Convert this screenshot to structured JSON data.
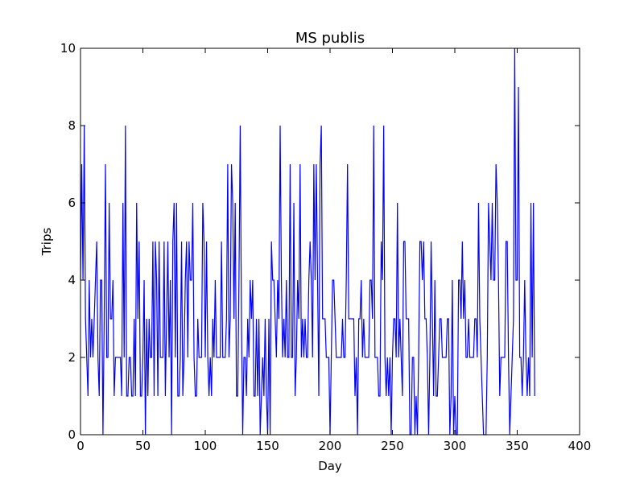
{
  "chart_data": {
    "type": "line",
    "title": "MS publis",
    "xlabel": "Day",
    "ylabel": "Trips",
    "xlim": [
      0,
      400
    ],
    "ylim": [
      0,
      10
    ],
    "xticks": [
      0,
      50,
      100,
      150,
      200,
      250,
      300,
      350,
      400
    ],
    "yticks": [
      0,
      2,
      4,
      6,
      8,
      10
    ],
    "grid": false,
    "legend": "none",
    "series": [
      {
        "color": "#0000ff",
        "x": [
          0,
          1,
          2,
          3,
          4,
          5,
          6,
          7,
          8,
          9,
          10,
          11,
          12,
          13,
          14,
          15,
          16,
          17,
          18,
          19,
          20,
          21,
          22,
          23,
          24,
          25,
          26,
          27,
          28,
          29,
          30,
          31,
          32,
          33,
          34,
          35,
          36,
          37,
          38,
          39,
          40,
          41,
          42,
          43,
          44,
          45,
          46,
          47,
          48,
          49,
          50,
          51,
          52,
          53,
          54,
          55,
          56,
          57,
          58,
          59,
          60,
          61,
          62,
          63,
          64,
          65,
          66,
          67,
          68,
          69,
          70,
          71,
          72,
          73,
          74,
          75,
          76,
          77,
          78,
          79,
          80,
          81,
          82,
          83,
          84,
          85,
          86,
          87,
          88,
          89,
          90,
          91,
          92,
          93,
          94,
          95,
          96,
          97,
          98,
          99,
          100,
          101,
          102,
          103,
          104,
          105,
          106,
          107,
          108,
          109,
          110,
          111,
          112,
          113,
          114,
          115,
          116,
          117,
          118,
          119,
          120,
          121,
          122,
          123,
          124,
          125,
          126,
          127,
          128,
          129,
          130,
          131,
          132,
          133,
          134,
          135,
          136,
          137,
          138,
          139,
          140,
          141,
          142,
          143,
          144,
          145,
          146,
          147,
          148,
          149,
          150,
          151,
          152,
          153,
          154,
          155,
          156,
          157,
          158,
          159,
          160,
          161,
          162,
          163,
          164,
          165,
          166,
          167,
          168,
          169,
          170,
          171,
          172,
          173,
          174,
          175,
          176,
          177,
          178,
          179,
          180,
          181,
          182,
          183,
          184,
          185,
          186,
          187,
          188,
          189,
          190,
          191,
          192,
          193,
          194,
          195,
          196,
          197,
          198,
          199,
          200,
          201,
          202,
          203,
          204,
          205,
          206,
          207,
          208,
          209,
          210,
          211,
          212,
          213,
          214,
          215,
          216,
          217,
          218,
          219,
          220,
          221,
          222,
          223,
          224,
          225,
          226,
          227,
          228,
          229,
          230,
          231,
          232,
          233,
          234,
          235,
          236,
          237,
          238,
          239,
          240,
          241,
          242,
          243,
          244,
          245,
          246,
          247,
          248,
          249,
          250,
          251,
          252,
          253,
          254,
          255,
          256,
          257,
          258,
          259,
          260,
          261,
          262,
          263,
          264,
          265,
          266,
          267,
          268,
          269,
          270,
          271,
          272,
          273,
          274,
          275,
          276,
          277,
          278,
          279,
          280,
          281,
          282,
          283,
          284,
          285,
          286,
          287,
          288,
          289,
          290,
          291,
          292,
          293,
          294,
          295,
          296,
          297,
          298,
          299,
          300,
          301,
          302,
          303,
          304,
          305,
          306,
          307,
          308,
          309,
          310,
          311,
          312,
          313,
          314,
          315,
          316,
          317,
          318,
          319,
          320,
          321,
          322,
          323,
          324,
          325,
          326,
          327,
          328,
          329,
          330,
          331,
          332,
          333,
          334,
          335,
          336,
          337,
          338,
          339,
          340,
          341,
          342,
          343,
          344,
          345,
          346,
          347,
          348,
          349,
          350,
          351,
          352,
          353,
          354,
          355,
          356,
          357,
          358,
          359,
          360,
          361,
          362,
          363,
          364
        ],
        "y": [
          4,
          7,
          4,
          8,
          3,
          2,
          1,
          4,
          2,
          3,
          2,
          3,
          4,
          5,
          2,
          1,
          4,
          4,
          0,
          3,
          7,
          2,
          2,
          6,
          3,
          3,
          4,
          1,
          2,
          2,
          2,
          2,
          2,
          1,
          6,
          2,
          8,
          1,
          1,
          2,
          2,
          1,
          1,
          3,
          1,
          6,
          3,
          5,
          1,
          1,
          2,
          4,
          0,
          3,
          1,
          3,
          2,
          2,
          5,
          1,
          5,
          4,
          1,
          5,
          2,
          2,
          2,
          5,
          1,
          3,
          5,
          2,
          4,
          0,
          5,
          6,
          2,
          6,
          1,
          1,
          2,
          5,
          1,
          2,
          4,
          5,
          2,
          5,
          4,
          4,
          6,
          2,
          1,
          1,
          3,
          2,
          2,
          2,
          6,
          5,
          2,
          5,
          2,
          1,
          2,
          1,
          3,
          2,
          4,
          2,
          2,
          2,
          2,
          5,
          2,
          2,
          2,
          3,
          7,
          2,
          3,
          7,
          6,
          3,
          6,
          1,
          1,
          4,
          8,
          3,
          0,
          2,
          2,
          1,
          3,
          2,
          4,
          3,
          4,
          1,
          1,
          3,
          1,
          3,
          0,
          1,
          2,
          1,
          3,
          1,
          0,
          3,
          0,
          5,
          4,
          4,
          3,
          2,
          4,
          3,
          8,
          4,
          2,
          3,
          2,
          4,
          2,
          2,
          7,
          2,
          2,
          6,
          1,
          2,
          4,
          3,
          7,
          2,
          3,
          2,
          3,
          2,
          2,
          4,
          5,
          4,
          2,
          7,
          4,
          7,
          4,
          1,
          7,
          8,
          3,
          3,
          3,
          2,
          2,
          2,
          0,
          2,
          4,
          4,
          3,
          2,
          2,
          2,
          2,
          2,
          3,
          2,
          2,
          4,
          7,
          3,
          3,
          3,
          3,
          3,
          1,
          2,
          0,
          3,
          3,
          4,
          2,
          3,
          2,
          2,
          2,
          2,
          4,
          4,
          3,
          8,
          2,
          2,
          2,
          1,
          1,
          5,
          4,
          8,
          2,
          1,
          2,
          1,
          2,
          0,
          2,
          3,
          3,
          2,
          6,
          2,
          3,
          2,
          1,
          5,
          5,
          3,
          3,
          3,
          0,
          0,
          2,
          2,
          0,
          1,
          0,
          2,
          5,
          5,
          4,
          5,
          3,
          3,
          2,
          0,
          2,
          5,
          3,
          1,
          4,
          1,
          1,
          2,
          3,
          3,
          2,
          2,
          2,
          2,
          3,
          3,
          0,
          1,
          4,
          0,
          1,
          0,
          0,
          4,
          4,
          3,
          5,
          3,
          4,
          2,
          2,
          3,
          2,
          2,
          2,
          2,
          3,
          3,
          2,
          6,
          3,
          2,
          1,
          0,
          0,
          0,
          2,
          6,
          5,
          4,
          6,
          4,
          4,
          7,
          6,
          4,
          1,
          2,
          2,
          2,
          2,
          5,
          5,
          2,
          0,
          1,
          2,
          3,
          10,
          4,
          4,
          9,
          2,
          2,
          1,
          2,
          4,
          2,
          1,
          2,
          1,
          6,
          2,
          6,
          1
        ]
      }
    ]
  }
}
